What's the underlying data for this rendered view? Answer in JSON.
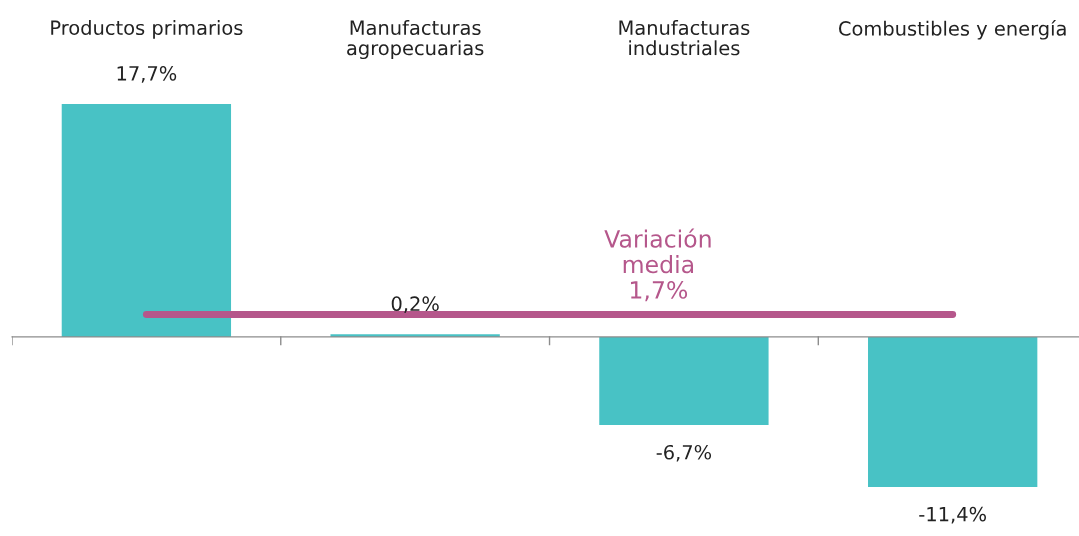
{
  "chart_data": {
    "type": "bar",
    "categories": [
      "Productos primarios",
      "Manufacturas\nagropecuarias",
      "Manufacturas\nindustriales",
      "Combustibles y energía"
    ],
    "values": [
      17.7,
      0.2,
      -6.7,
      -11.4
    ],
    "value_labels": [
      "17,7%",
      "0,2%",
      "-6,7%",
      "-11,4%"
    ],
    "color": "#48c2c5",
    "ref_lines": [
      {
        "axis": "y",
        "value": 1.7,
        "label": "Variación\nmedia\n1,7%",
        "color": "#b5578b"
      }
    ],
    "legend": false
  }
}
